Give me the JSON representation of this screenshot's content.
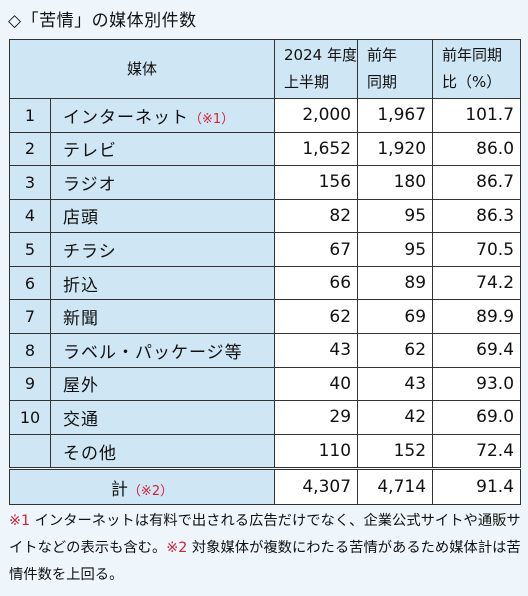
{
  "title": "◇「苦情」の媒体別件数",
  "header": {
    "media": "媒体",
    "col1": [
      "2024 年度",
      "上半期"
    ],
    "col2": [
      "前年",
      "同期"
    ],
    "col3": [
      "前年同期",
      "比（%）"
    ]
  },
  "rows": [
    {
      "no": "1",
      "media": "インターネット",
      "note": "（※1）",
      "v1": "2,000",
      "v2": "1,967",
      "v3": "101.7"
    },
    {
      "no": "2",
      "media": "テレビ",
      "note": "",
      "v1": "1,652",
      "v2": "1,920",
      "v3": "86.0"
    },
    {
      "no": "3",
      "media": "ラジオ",
      "note": "",
      "v1": "156",
      "v2": "180",
      "v3": "86.7"
    },
    {
      "no": "4",
      "media": "店頭",
      "note": "",
      "v1": "82",
      "v2": "95",
      "v3": "86.3"
    },
    {
      "no": "5",
      "media": "チラシ",
      "note": "",
      "v1": "67",
      "v2": "95",
      "v3": "70.5"
    },
    {
      "no": "6",
      "media": "折込",
      "note": "",
      "v1": "66",
      "v2": "89",
      "v3": "74.2"
    },
    {
      "no": "7",
      "media": "新聞",
      "note": "",
      "v1": "62",
      "v2": "69",
      "v3": "89.9"
    },
    {
      "no": "8",
      "media": "ラベル・パッケージ等",
      "note": "",
      "v1": "43",
      "v2": "62",
      "v3": "69.4"
    },
    {
      "no": "9",
      "media": "屋外",
      "note": "",
      "v1": "40",
      "v2": "43",
      "v3": "93.0"
    },
    {
      "no": "10",
      "media": "交通",
      "note": "",
      "v1": "29",
      "v2": "42",
      "v3": "69.0"
    },
    {
      "no": "",
      "media": "その他",
      "note": "",
      "v1": "110",
      "v2": "152",
      "v3": "72.4"
    }
  ],
  "total": {
    "label": "計",
    "note": "（※2）",
    "v1": "4,307",
    "v2": "4,714",
    "v3": "91.4"
  },
  "footnotes": {
    "mark1": "※1",
    "text1": " インターネットは有料で出される広告だけでなく、企業公式サイトや通販サイトなどの表示も含む。",
    "mark2": "※2",
    "text2": " 対象媒体が複数にわたる苦情があるため媒体計は苦情件数を上回る。"
  },
  "colors": {
    "header_bg": "#cfe6f4",
    "page_bg": "#eef6fc",
    "note_red": "#d6203a"
  }
}
